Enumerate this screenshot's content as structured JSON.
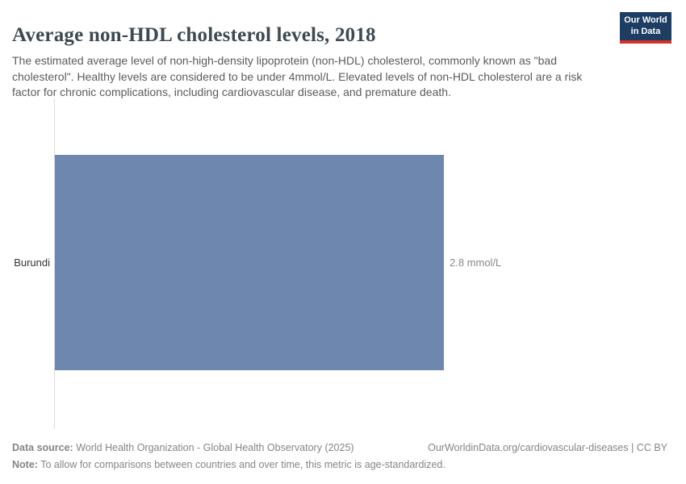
{
  "header": {
    "title": "Average non-HDL cholesterol levels, 2018",
    "subtitle": "The estimated average level of non-high-density lipoprotein (non-HDL) cholesterol, commonly known as \"bad cholesterol\". Healthy levels are considered to be under 4mmol/L. Elevated levels of non-HDL cholesterol are a risk factor for chronic complications, including cardiovascular disease, and premature death."
  },
  "logo": {
    "line1": "Our World",
    "line2": "in Data",
    "bg_color": "#1d3d63",
    "accent_color": "#d13328"
  },
  "chart_data": {
    "type": "bar",
    "orientation": "horizontal",
    "title": "Average non-HDL cholesterol levels, 2018",
    "categories": [
      "Burundi"
    ],
    "values": [
      2.8
    ],
    "unit": "mmol/L",
    "value_labels": [
      "2.8 mmol/L"
    ],
    "bar_color": "#6e87ae",
    "axis_color": "#d9d9d9",
    "grid": false,
    "legend": false,
    "xlabel": "",
    "ylabel": ""
  },
  "footer": {
    "datasource_label": "Data source:",
    "datasource_text": " World Health Organization - Global Health Observatory (2025)",
    "rights": "OurWorldinData.org/cardiovascular-diseases | CC BY",
    "note_label": "Note:",
    "note_text": " To allow for comparisons between countries and over time, this metric is age-standardized."
  }
}
